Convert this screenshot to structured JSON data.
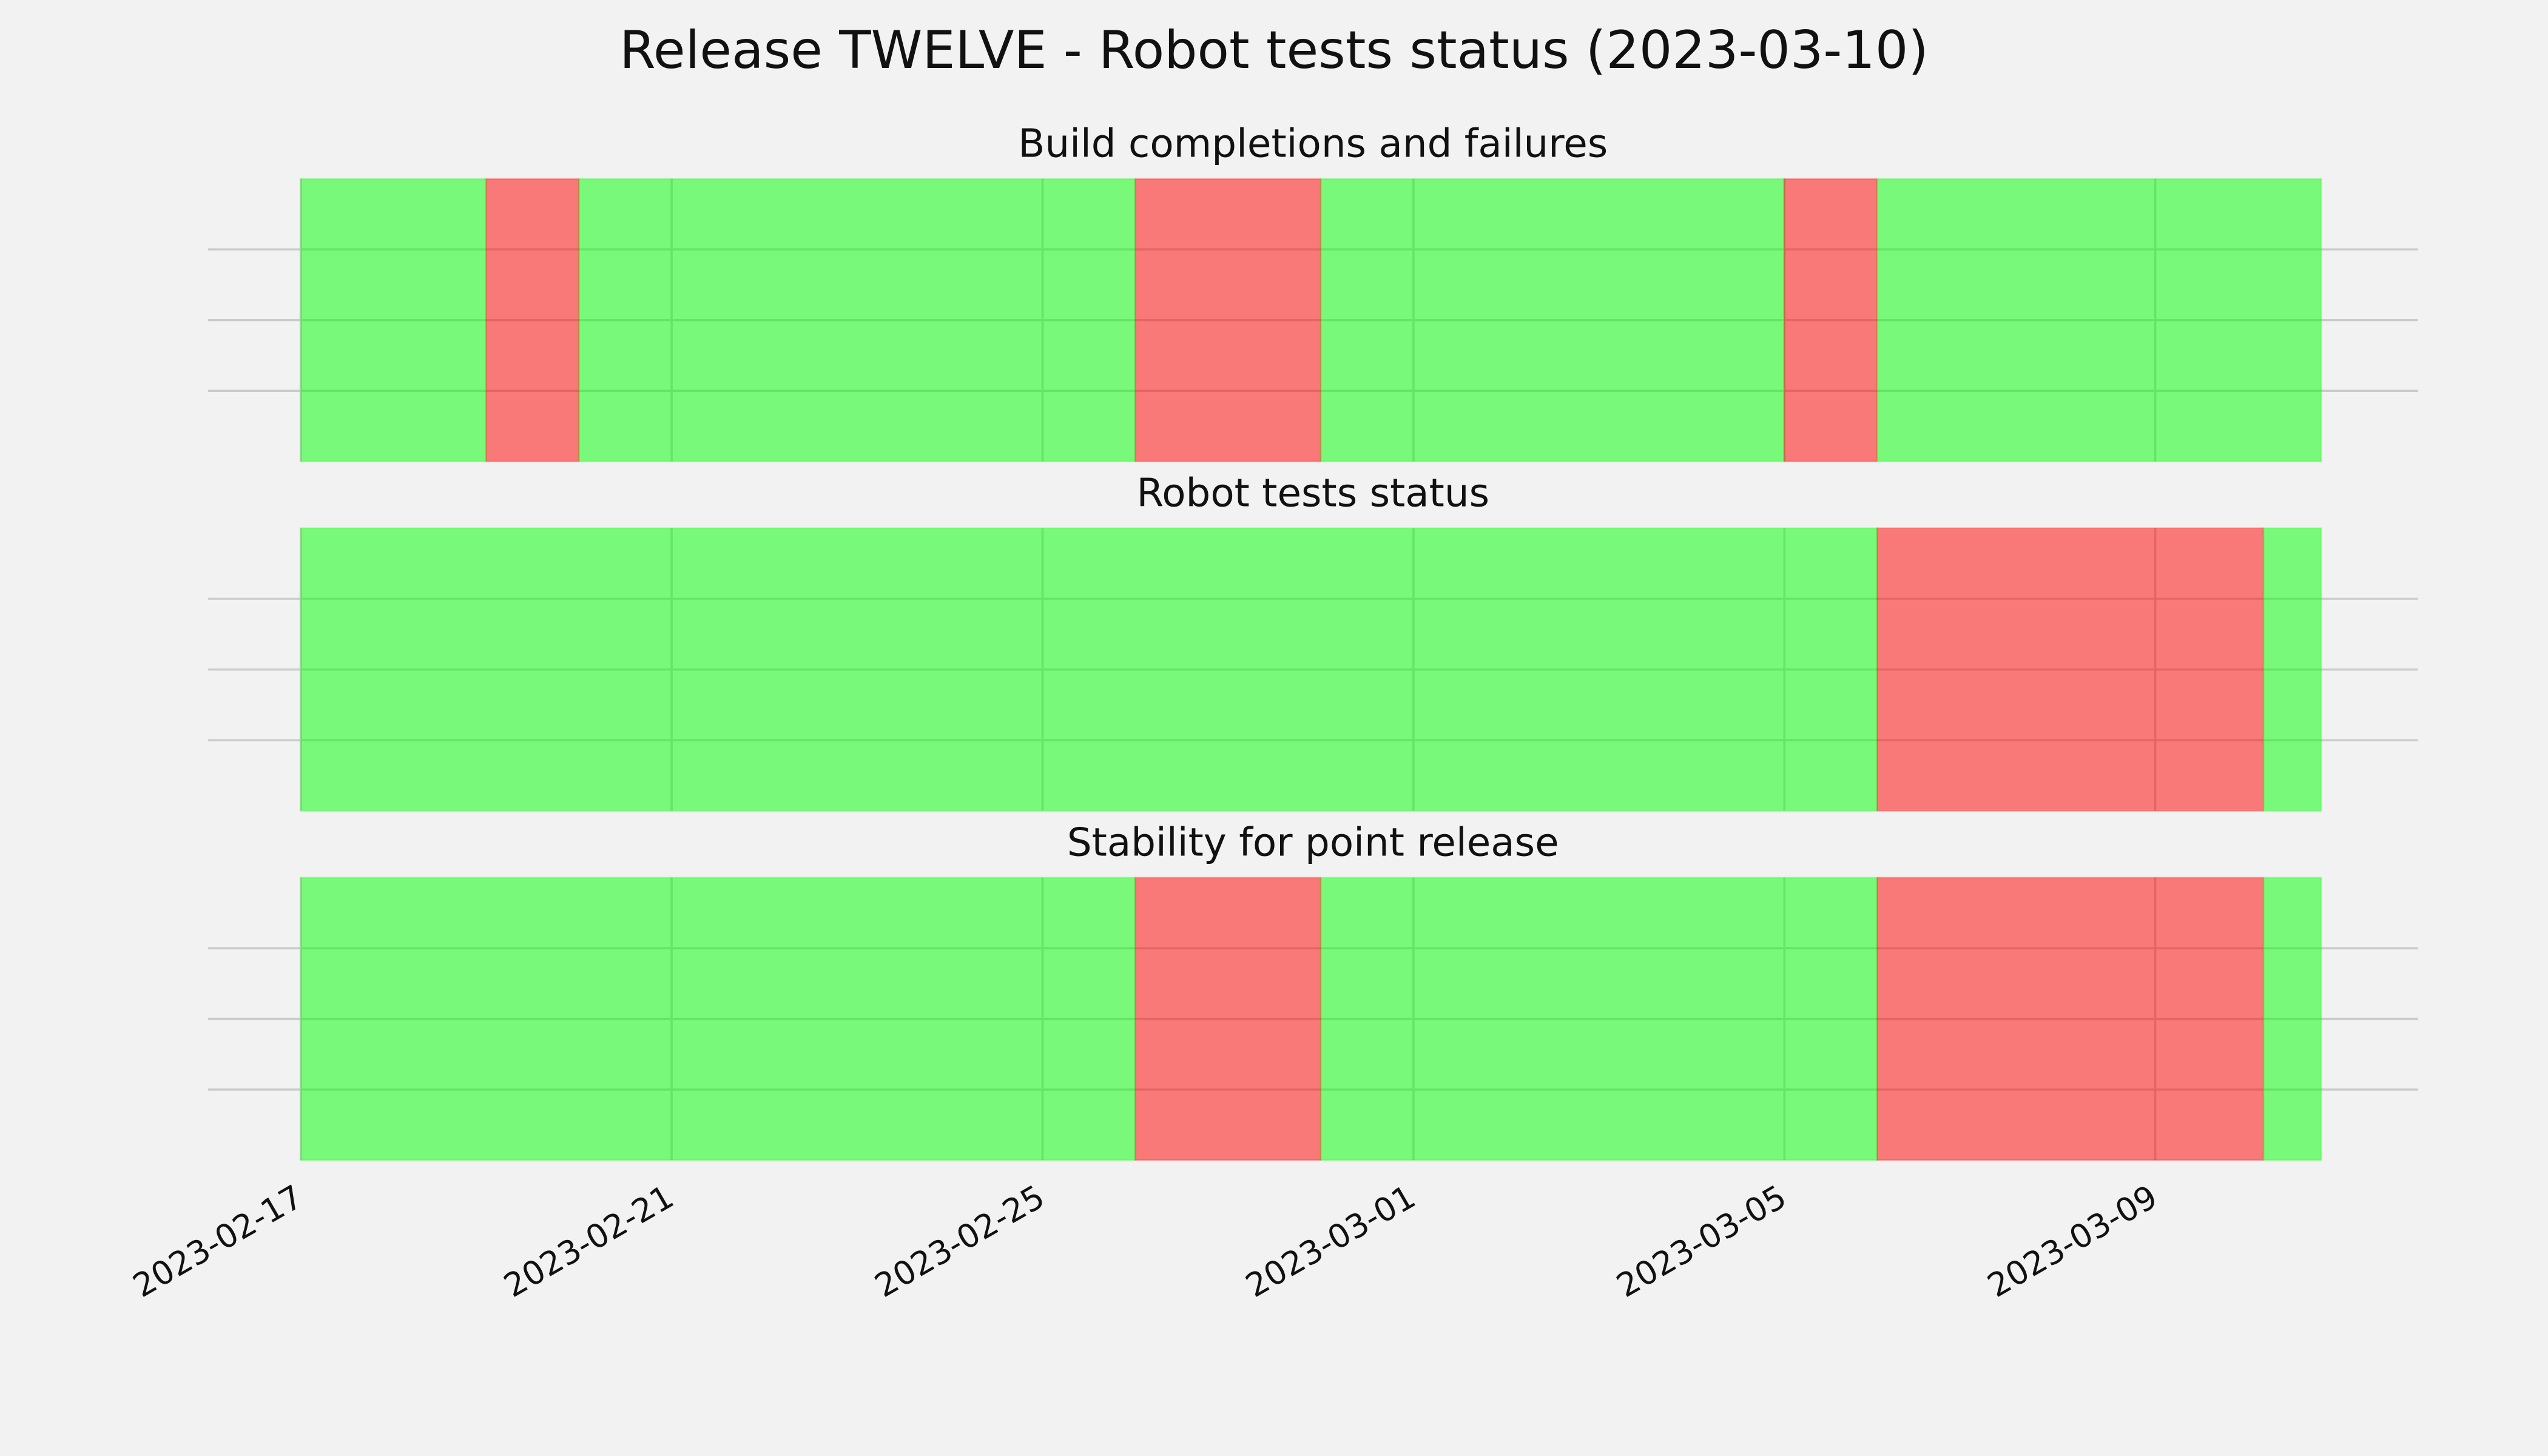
{
  "title": "Release TWELVE - Robot tests status (2023-03-10)",
  "chart_data": [
    {
      "type": "timeline",
      "title": "Build completions and failures",
      "alpha": 0.5,
      "grid": true,
      "show_xtick_labels": false,
      "xlim": [
        "2023-02-16",
        "2023-03-11T20:00"
      ],
      "xticks": [
        "2023-02-17",
        "2023-02-21",
        "2023-02-25",
        "2023-03-01",
        "2023-03-05",
        "2023-03-09"
      ],
      "ylim": [
        0,
        1
      ],
      "yticks": [
        0.25,
        0.5,
        0.75
      ],
      "segments": [
        {
          "start": "2023-02-17",
          "end": "2023-02-19",
          "color": "#00ff00"
        },
        {
          "start": "2023-02-19",
          "end": "2023-02-20",
          "color": "#ff0000"
        },
        {
          "start": "2023-02-20",
          "end": "2023-02-26",
          "color": "#00ff00"
        },
        {
          "start": "2023-02-26",
          "end": "2023-02-28",
          "color": "#ff0000"
        },
        {
          "start": "2023-02-28",
          "end": "2023-03-05",
          "color": "#00ff00"
        },
        {
          "start": "2023-03-05",
          "end": "2023-03-06",
          "color": "#ff0000"
        },
        {
          "start": "2023-03-06",
          "end": "2023-03-10T19:00",
          "color": "#00ff00"
        }
      ]
    },
    {
      "type": "timeline",
      "title": "Robot tests status",
      "alpha": 0.5,
      "grid": true,
      "show_xtick_labels": false,
      "xlim": [
        "2023-02-16",
        "2023-03-11T20:00"
      ],
      "xticks": [
        "2023-02-17",
        "2023-02-21",
        "2023-02-25",
        "2023-03-01",
        "2023-03-05",
        "2023-03-09"
      ],
      "ylim": [
        0,
        1
      ],
      "yticks": [
        0.25,
        0.5,
        0.75
      ],
      "segments": [
        {
          "start": "2023-02-17",
          "end": "2023-03-06",
          "color": "#00ff00"
        },
        {
          "start": "2023-03-06",
          "end": "2023-03-10T04:00",
          "color": "#ff0000"
        },
        {
          "start": "2023-03-10T04:00",
          "end": "2023-03-10T19:00",
          "color": "#00ff00"
        }
      ]
    },
    {
      "type": "timeline",
      "title": "Stability for point release",
      "alpha": 0.5,
      "grid": true,
      "show_xtick_labels": true,
      "xlim": [
        "2023-02-16",
        "2023-03-11T20:00"
      ],
      "xticks": [
        "2023-02-17",
        "2023-02-21",
        "2023-02-25",
        "2023-03-01",
        "2023-03-05",
        "2023-03-09"
      ],
      "ylim": [
        0,
        1
      ],
      "yticks": [
        0.25,
        0.5,
        0.75
      ],
      "segments": [
        {
          "start": "2023-02-17",
          "end": "2023-02-26",
          "color": "#00ff00"
        },
        {
          "start": "2023-02-26",
          "end": "2023-02-28",
          "color": "#ff0000"
        },
        {
          "start": "2023-02-28",
          "end": "2023-03-06",
          "color": "#00ff00"
        },
        {
          "start": "2023-03-06",
          "end": "2023-03-10T04:00",
          "color": "#ff0000"
        },
        {
          "start": "2023-03-10T04:00",
          "end": "2023-03-10T19:00",
          "color": "#00ff00"
        }
      ]
    }
  ]
}
